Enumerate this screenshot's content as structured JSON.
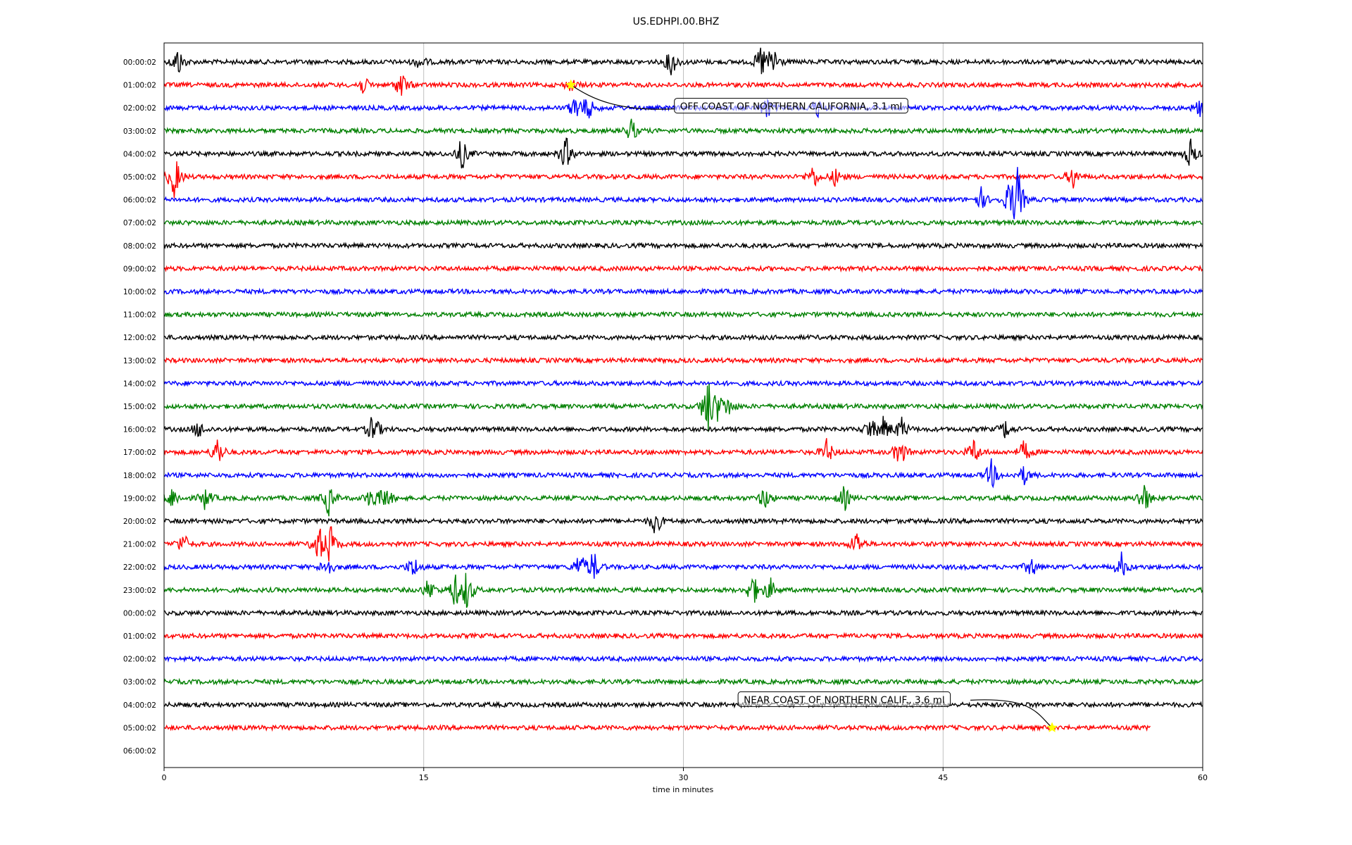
{
  "chart_data": {
    "type": "line",
    "title": "US.EDHPI.00.BHZ",
    "xlabel": "time in minutes",
    "ylabel": "",
    "xlim": [
      0,
      60
    ],
    "x_ticks": [
      "0",
      "15",
      "30",
      "45",
      "60"
    ],
    "x_tick_values": [
      0,
      15,
      30,
      45,
      60
    ],
    "grid": "vertical at major ticks",
    "rows": [
      "00:00:02",
      "01:00:02",
      "02:00:02",
      "03:00:02",
      "04:00:02",
      "05:00:02",
      "06:00:02",
      "07:00:02",
      "08:00:02",
      "09:00:02",
      "10:00:02",
      "11:00:02",
      "12:00:02",
      "13:00:02",
      "14:00:02",
      "15:00:02",
      "16:00:02",
      "17:00:02",
      "18:00:02",
      "19:00:02",
      "20:00:02",
      "21:00:02",
      "22:00:02",
      "23:00:02",
      "00:00:02",
      "01:00:02",
      "02:00:02",
      "03:00:02",
      "04:00:02",
      "05:00:02",
      "06:00:02"
    ],
    "trace_colors": [
      "#000000",
      "#ff0000",
      "#0000ff",
      "#008000"
    ],
    "last_trace_end_minute": 57,
    "events": [
      {
        "row": 0,
        "bursts": [
          [
            0.8,
            2.5
          ],
          [
            14.8,
            1.2
          ],
          [
            29.3,
            2.5
          ],
          [
            34.5,
            3.0
          ],
          [
            35.2,
            3.0
          ]
        ]
      },
      {
        "row": 1,
        "bursts": [
          [
            11.5,
            1.5
          ],
          [
            13.7,
            2.5
          ],
          [
            23.5,
            1.0
          ]
        ]
      },
      {
        "row": 2,
        "bursts": [
          [
            23.8,
            2.5
          ],
          [
            24.5,
            2.0
          ],
          [
            34.8,
            2.0
          ],
          [
            37.7,
            1.8
          ],
          [
            59.8,
            1.5
          ]
        ]
      },
      {
        "row": 3,
        "bursts": [
          [
            27.0,
            2.0
          ]
        ]
      },
      {
        "row": 4,
        "bursts": [
          [
            17.2,
            2.8
          ],
          [
            23.2,
            3.0
          ],
          [
            59.3,
            2.5
          ]
        ]
      },
      {
        "row": 5,
        "bursts": [
          [
            0.6,
            4.0
          ],
          [
            37.5,
            2.0
          ],
          [
            38.8,
            1.5
          ],
          [
            52.5,
            2.0
          ]
        ]
      },
      {
        "row": 6,
        "bursts": [
          [
            47.2,
            1.8
          ],
          [
            49.3,
            5.5
          ],
          [
            48.8,
            2.5
          ]
        ]
      },
      {
        "row": 15,
        "bursts": [
          [
            31.4,
            5.5
          ],
          [
            32.0,
            2.0
          ],
          [
            32.6,
            1.5
          ]
        ]
      },
      {
        "row": 16,
        "bursts": [
          [
            2.0,
            1.5
          ],
          [
            12.1,
            3.0
          ],
          [
            40.8,
            2.0
          ],
          [
            41.6,
            2.2
          ],
          [
            42.6,
            2.0
          ],
          [
            48.6,
            1.5
          ]
        ]
      },
      {
        "row": 17,
        "bursts": [
          [
            3.1,
            2.8
          ],
          [
            38.3,
            2.2
          ],
          [
            42.5,
            2.8
          ],
          [
            46.8,
            2.2
          ],
          [
            49.7,
            2.0
          ]
        ]
      },
      {
        "row": 18,
        "bursts": [
          [
            47.8,
            2.5
          ],
          [
            49.7,
            1.5
          ]
        ]
      },
      {
        "row": 19,
        "bursts": [
          [
            0.5,
            2.0
          ],
          [
            2.4,
            2.0
          ],
          [
            9.5,
            2.8
          ],
          [
            12.0,
            2.2
          ],
          [
            12.8,
            2.2
          ],
          [
            34.7,
            2.0
          ],
          [
            39.3,
            2.0
          ],
          [
            56.6,
            3.0
          ]
        ]
      },
      {
        "row": 20,
        "bursts": [
          [
            28.4,
            2.5
          ]
        ]
      },
      {
        "row": 21,
        "bursts": [
          [
            1.1,
            2.0
          ],
          [
            8.9,
            3.5
          ],
          [
            9.6,
            3.5
          ],
          [
            40.0,
            2.2
          ]
        ]
      },
      {
        "row": 22,
        "bursts": [
          [
            9.4,
            2.0
          ],
          [
            14.4,
            2.0
          ],
          [
            24.0,
            2.5
          ],
          [
            24.8,
            2.8
          ],
          [
            50.1,
            1.8
          ],
          [
            55.3,
            2.2
          ]
        ]
      },
      {
        "row": 23,
        "bursts": [
          [
            15.3,
            2.0
          ],
          [
            16.8,
            2.8
          ],
          [
            17.5,
            3.5
          ],
          [
            34.0,
            3.0
          ],
          [
            35.0,
            2.0
          ]
        ]
      }
    ],
    "annotations": [
      {
        "text": "OFF COAST OF NORTHERN CALIFORNIA, 3.1 ml",
        "row": 1,
        "minute": 23.5
      },
      {
        "text": "NEAR COAST OF NORTHERN CALIF., 3.6 ml",
        "row": 29,
        "minute": 51.3
      }
    ],
    "marker_color": "#ffff00"
  }
}
